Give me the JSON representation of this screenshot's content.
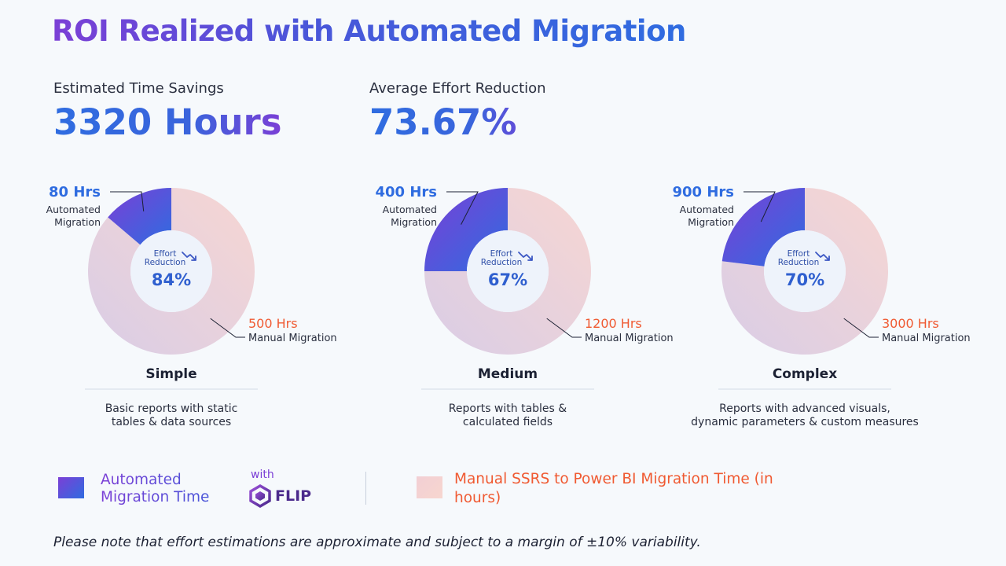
{
  "title": "ROI Realized with Automated Migration",
  "kpis": [
    {
      "label": "Estimated Time Savings",
      "value": "3320 Hours"
    },
    {
      "label": "Average Effort Reduction",
      "value": "73.67%"
    }
  ],
  "chart_data": {
    "type": "pie",
    "series_names": [
      "Automated Migration",
      "Manual Migration"
    ],
    "charts": [
      {
        "category": "Simple",
        "description": [
          "Basic reports with static",
          "tables & data sources"
        ],
        "automated_hours": 80,
        "manual_hours": 500,
        "automated_label": "80 Hrs",
        "manual_label": "500 Hrs",
        "effort_reduction": "84%"
      },
      {
        "category": "Medium",
        "description": [
          "Reports with tables &",
          "calculated fields"
        ],
        "automated_hours": 400,
        "manual_hours": 1200,
        "automated_label": "400 Hrs",
        "manual_label": "1200 Hrs",
        "effort_reduction": "67%"
      },
      {
        "category": "Complex",
        "description": [
          "Reports with advanced visuals,",
          "dynamic parameters & custom measures"
        ],
        "automated_hours": 900,
        "manual_hours": 3000,
        "automated_label": "900 Hrs",
        "manual_label": "3000 Hrs",
        "effort_reduction": "70%"
      }
    ],
    "automated_sub_label": [
      "Automated",
      "Migration"
    ],
    "manual_sub_label": "Manual Migration",
    "center_label": [
      "Effort",
      "Reduction"
    ],
    "colors": {
      "automated_start": "#7b3fd6",
      "automated_end": "#2f6ce0",
      "manual_start": "#f7d6d2",
      "manual_end": "#d9cde6"
    }
  },
  "legend": {
    "automated_line1": "Automated",
    "automated_line2": "Migration Time",
    "with": "with",
    "flip": "FLIP",
    "manual": "Manual SSRS to Power BI Migration Time (in hours)"
  },
  "note": "Please note that effort estimations are approximate and subject to a margin of ±10% variability."
}
